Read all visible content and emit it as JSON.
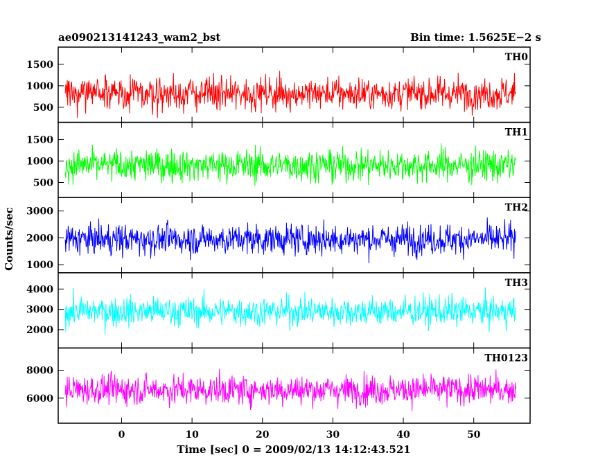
{
  "header": {
    "title": "ae090213141243_wam2_bst",
    "bin_time": "Bin time: 1.5625E−2 s"
  },
  "chart_data": {
    "type": "line",
    "title": "ae090213141243_wam2_bst",
    "bin_time": "Bin time: 1.5625E−2 s",
    "xlabel": "Time [sec] 0 = 2009/02/13 14:12:43.521",
    "ylabel": "Counts/sec",
    "xlim": [
      -9,
      58
    ],
    "x_data_range": [
      -8,
      56
    ],
    "x_ticks": [
      0,
      10,
      20,
      30,
      40,
      50
    ],
    "x_tick_labels": [
      "0",
      "10",
      "20",
      "30",
      "40",
      "50"
    ],
    "grid": false,
    "series": [
      {
        "name": "TH0",
        "color": "#ff0000",
        "ylim": [
          150,
          1900
        ],
        "y_ticks": [
          500,
          1000,
          1500
        ],
        "y_tick_labels": [
          "500",
          "1000",
          "1500"
        ],
        "mean": 820,
        "min": 200,
        "max": 1800
      },
      {
        "name": "TH1",
        "color": "#00ff00",
        "ylim": [
          150,
          1900
        ],
        "y_ticks": [
          500,
          1000,
          1500
        ],
        "y_tick_labels": [
          "500",
          "1000",
          "1500"
        ],
        "mean": 900,
        "min": 250,
        "max": 1850
      },
      {
        "name": "TH2",
        "color": "#0000ff",
        "ylim": [
          700,
          3500
        ],
        "y_ticks": [
          1000,
          2000,
          3000
        ],
        "y_tick_labels": [
          "1000",
          "2000",
          "3000"
        ],
        "mean": 1950,
        "min": 900,
        "max": 3300
      },
      {
        "name": "TH3",
        "color": "#00ffff",
        "ylim": [
          1100,
          4800
        ],
        "y_ticks": [
          2000,
          3000,
          4000
        ],
        "y_tick_labels": [
          "2000",
          "3000",
          "4000"
        ],
        "mean": 2900,
        "min": 1400,
        "max": 4500
      },
      {
        "name": "TH0123",
        "color": "#ff00ff",
        "ylim": [
          4200,
          9600
        ],
        "y_ticks": [
          6000,
          8000
        ],
        "y_tick_labels": [
          "6000",
          "8000"
        ],
        "mean": 6600,
        "min": 4700,
        "max": 9200
      }
    ]
  }
}
